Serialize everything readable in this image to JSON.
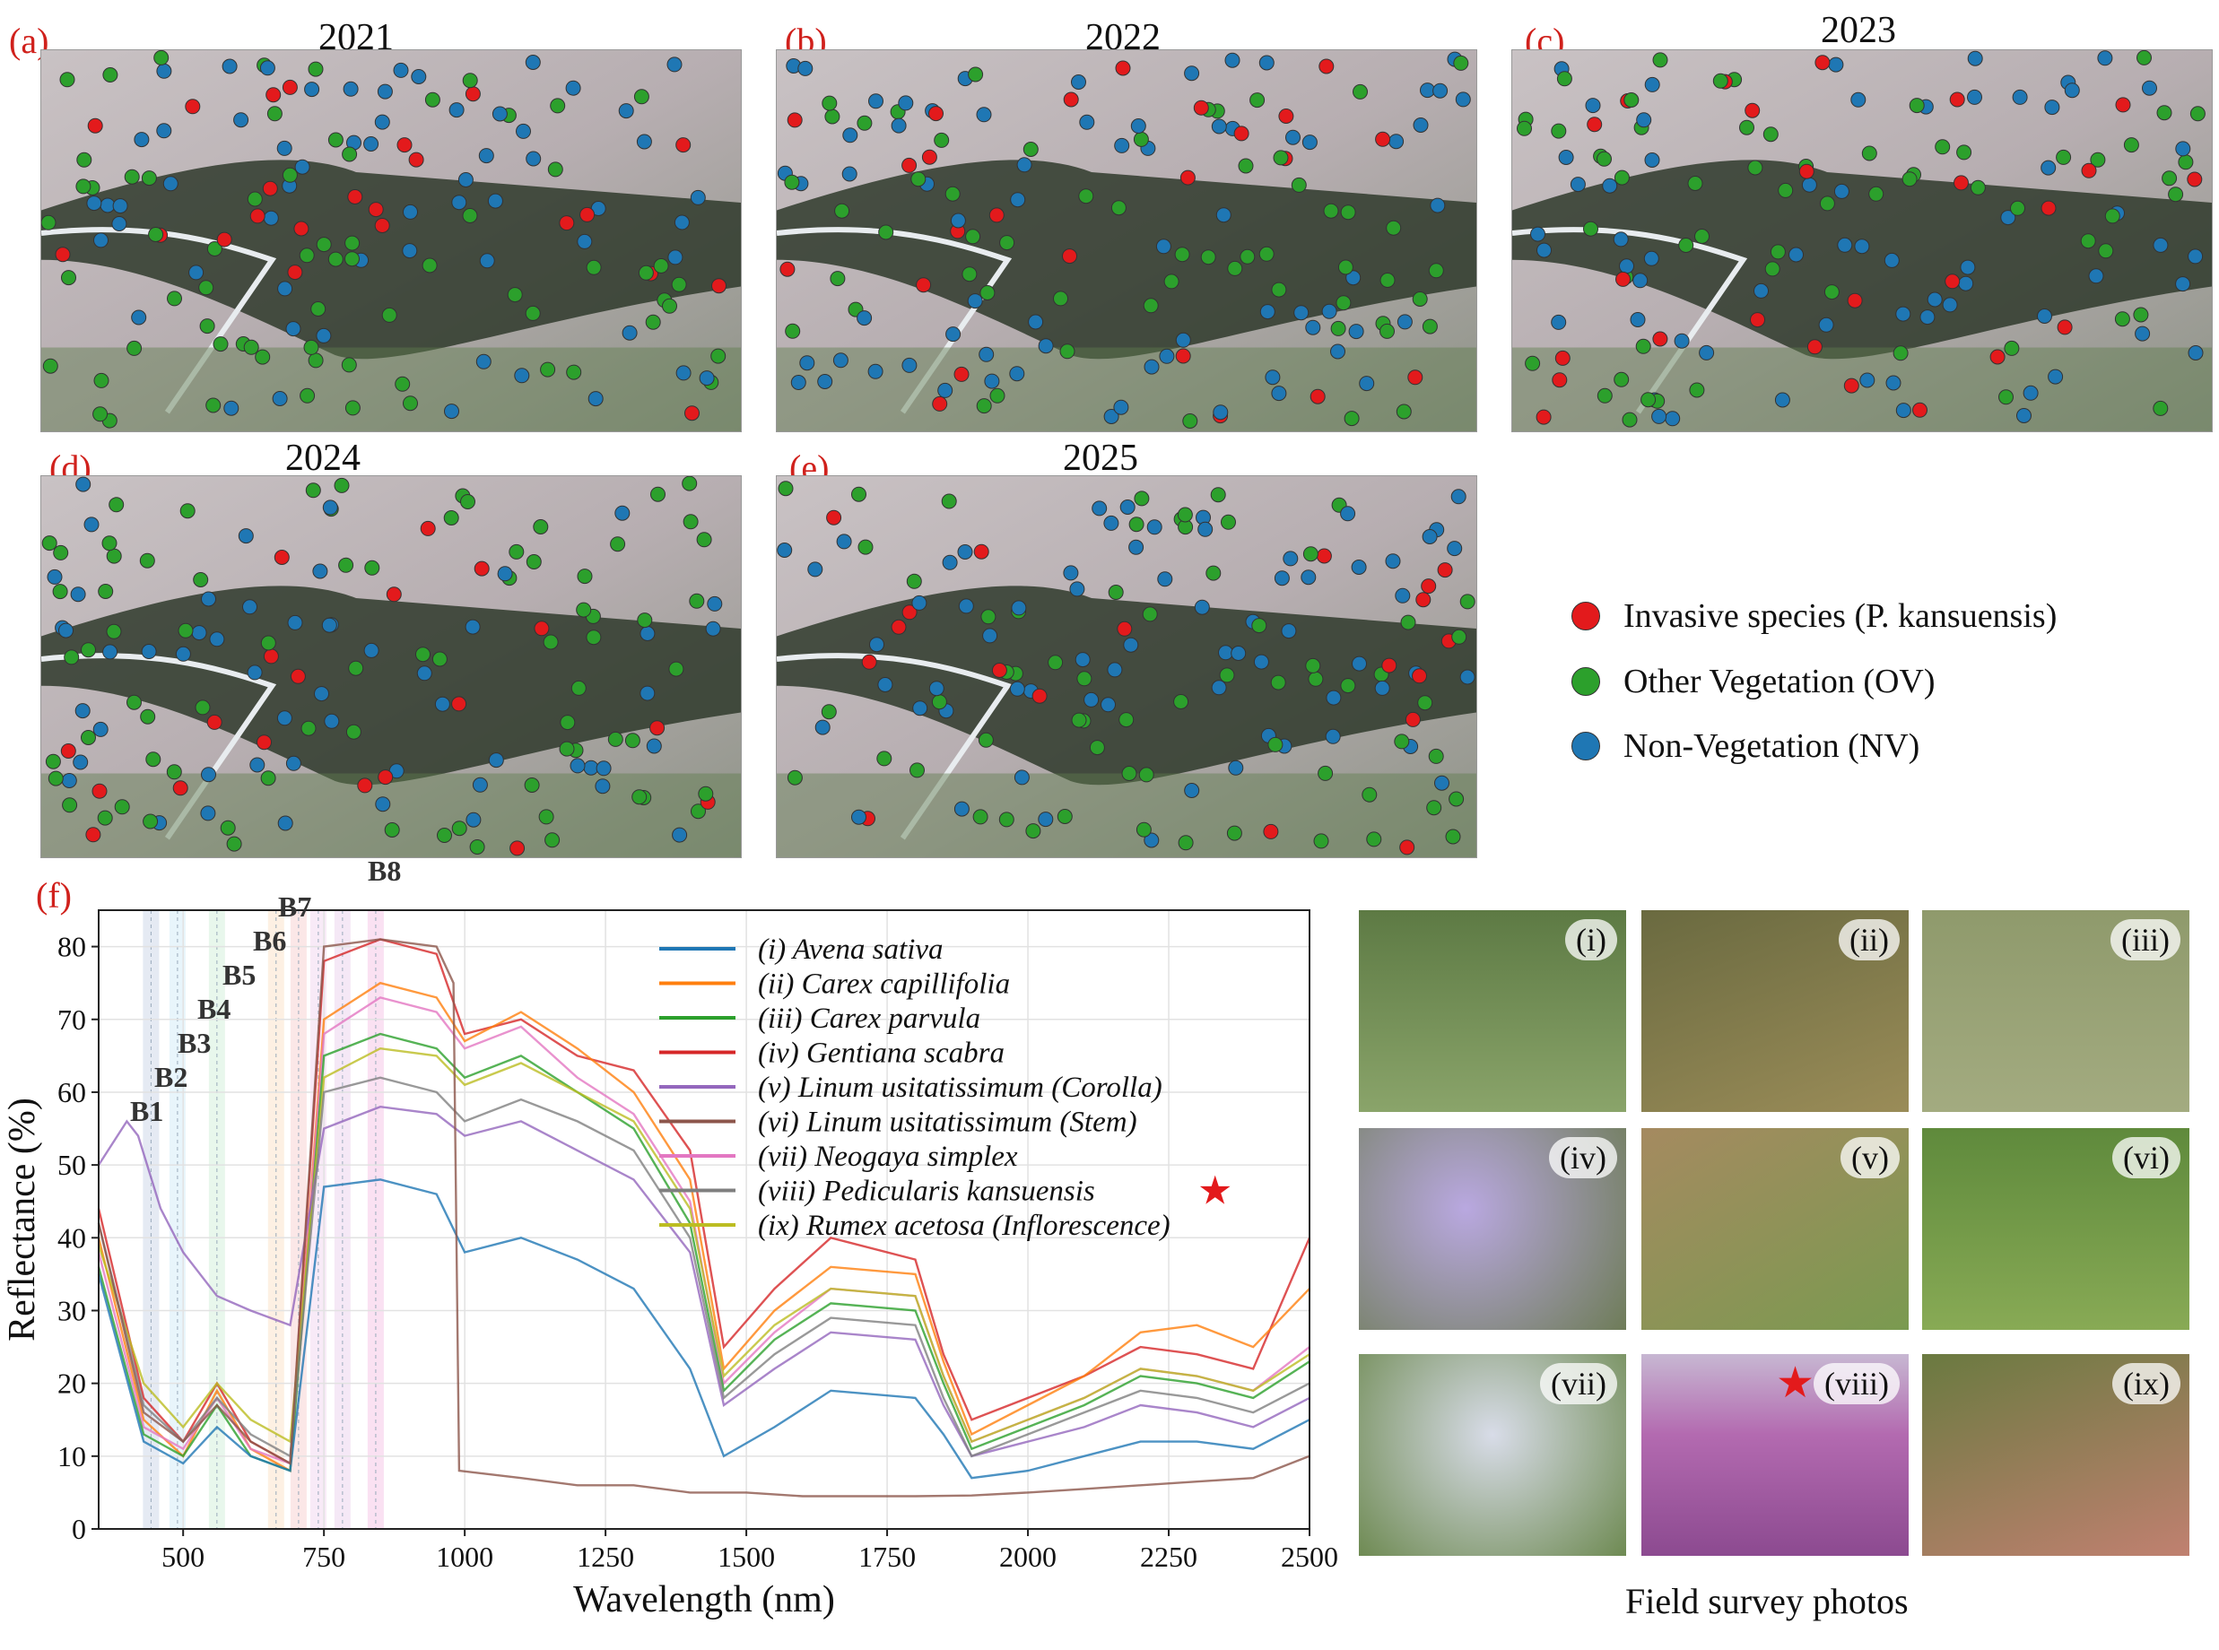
{
  "maps": [
    {
      "label": "(a)",
      "year": "2021"
    },
    {
      "label": "(b)",
      "year": "2022"
    },
    {
      "label": "(c)",
      "year": "2023"
    },
    {
      "label": "(d)",
      "year": "2024"
    },
    {
      "label": "(e)",
      "year": "2025"
    }
  ],
  "legend": [
    {
      "label": "Invasive species (P. kansuensis)",
      "color": "#e31a1c"
    },
    {
      "label": "Other Vegetation (OV)",
      "color": "#2ca02c"
    },
    {
      "label": "Non-Vegetation (NV)",
      "color": "#1f77b4"
    }
  ],
  "photos": {
    "caption": "Field survey photos",
    "items": [
      {
        "label": "(i)"
      },
      {
        "label": "(ii)"
      },
      {
        "label": "(iii)"
      },
      {
        "label": "(iv)"
      },
      {
        "label": "(v)"
      },
      {
        "label": "(vi)"
      },
      {
        "label": "(vii)"
      },
      {
        "label": "(viii)"
      },
      {
        "label": "(ix)"
      }
    ]
  },
  "chart_data": {
    "panel_label": "(f)",
    "type": "line",
    "xlabel": "Wavelength (nm)",
    "ylabel": "Reflectance (%)",
    "xlim": [
      350,
      2500
    ],
    "ylim": [
      0,
      85
    ],
    "xticks": [
      500,
      750,
      1000,
      1250,
      1500,
      1750,
      2000,
      2250,
      2500
    ],
    "yticks": [
      0,
      10,
      20,
      30,
      40,
      50,
      60,
      70,
      80
    ],
    "grid": true,
    "legend_placement": "top-right",
    "bands": [
      {
        "name": "B1",
        "center": 443
      },
      {
        "name": "B2",
        "center": 490
      },
      {
        "name": "B3",
        "center": 560
      },
      {
        "name": "B4",
        "center": 665
      },
      {
        "name": "B5",
        "center": 705
      },
      {
        "name": "B6",
        "center": 740
      },
      {
        "name": "B7",
        "center": 783
      },
      {
        "name": "B8",
        "center": 842
      }
    ],
    "series": [
      {
        "name": "(i) Avena sativa",
        "color": "#1f77b4"
      },
      {
        "name": "(ii) Carex capillifolia",
        "color": "#ff7f0e"
      },
      {
        "name": "(iii) Carex parvula",
        "color": "#2ca02c"
      },
      {
        "name": "(iv) Gentiana scabra",
        "color": "#d62728"
      },
      {
        "name": "(v) Linum usitatissimum (Corolla)",
        "color": "#9467bd"
      },
      {
        "name": "(vi) Linum usitatissimum (Stem)",
        "color": "#8c564b"
      },
      {
        "name": "(vii) Neogaya simplex",
        "color": "#e377c2"
      },
      {
        "name": "(viii) Pedicularis kansuensis",
        "color": "#7f7f7f"
      },
      {
        "name": "(ix) Rumex acetosa (Inflorescence)",
        "color": "#bcbd22"
      }
    ],
    "curves": [
      {
        "color": "#d62728",
        "x": [
          350,
          430,
          500,
          560,
          620,
          690,
          750,
          850,
          950,
          1000,
          1100,
          1200,
          1300,
          1400,
          1460,
          1550,
          1650,
          1800,
          1850,
          1900,
          2000,
          2100,
          2200,
          2300,
          2400,
          2500
        ],
        "y": [
          44,
          18,
          12,
          20,
          12,
          9,
          78,
          81,
          79,
          68,
          70,
          65,
          63,
          52,
          25,
          33,
          40,
          37,
          24,
          15,
          18,
          21,
          25,
          24,
          22,
          40
        ]
      },
      {
        "color": "#ff7f0e",
        "x": [
          350,
          430,
          500,
          560,
          620,
          690,
          750,
          850,
          950,
          1000,
          1100,
          1200,
          1300,
          1400,
          1460,
          1550,
          1650,
          1800,
          1850,
          1900,
          2000,
          2100,
          2200,
          2300,
          2400,
          2500
        ],
        "y": [
          40,
          15,
          10,
          19,
          11,
          8,
          70,
          75,
          73,
          67,
          71,
          66,
          60,
          48,
          22,
          30,
          36,
          35,
          23,
          13,
          17,
          21,
          27,
          28,
          25,
          33
        ]
      },
      {
        "color": "#e377c2",
        "x": [
          350,
          430,
          500,
          560,
          620,
          690,
          750,
          850,
          950,
          1000,
          1100,
          1200,
          1300,
          1400,
          1460,
          1550,
          1650,
          1800,
          1850,
          1900,
          2000,
          2100,
          2200,
          2300,
          2400,
          2500
        ],
        "y": [
          38,
          14,
          11,
          18,
          11,
          9,
          68,
          73,
          71,
          66,
          69,
          62,
          57,
          45,
          20,
          27,
          33,
          32,
          21,
          12,
          15,
          18,
          22,
          21,
          19,
          25
        ]
      },
      {
        "color": "#2ca02c",
        "x": [
          350,
          430,
          500,
          560,
          620,
          690,
          750,
          850,
          950,
          1000,
          1100,
          1200,
          1300,
          1400,
          1460,
          1550,
          1650,
          1800,
          1850,
          1900,
          2000,
          2100,
          2200,
          2300,
          2400,
          2500
        ],
        "y": [
          36,
          13,
          10,
          17,
          10,
          8,
          65,
          68,
          66,
          62,
          65,
          60,
          55,
          42,
          19,
          26,
          31,
          30,
          20,
          11,
          14,
          17,
          21,
          20,
          18,
          23
        ]
      },
      {
        "color": "#bcbd22",
        "x": [
          350,
          430,
          500,
          560,
          620,
          690,
          750,
          850,
          950,
          1000,
          1100,
          1200,
          1300,
          1400,
          1460,
          1550,
          1650,
          1800,
          1850,
          1900,
          2000,
          2100,
          2200,
          2300,
          2400,
          2500
        ],
        "y": [
          39,
          20,
          14,
          20,
          15,
          12,
          62,
          66,
          65,
          61,
          64,
          60,
          56,
          44,
          21,
          28,
          33,
          32,
          21,
          12,
          15,
          18,
          22,
          21,
          19,
          24
        ]
      },
      {
        "color": "#9467bd",
        "x": [
          350,
          400,
          420,
          460,
          500,
          560,
          620,
          690,
          750,
          850,
          950,
          1000,
          1100,
          1200,
          1300,
          1400,
          1460,
          1550,
          1650,
          1800,
          1850,
          1900,
          2000,
          2100,
          2200,
          2300,
          2400,
          2500
        ],
        "y": [
          50,
          56,
          54,
          44,
          38,
          32,
          30,
          28,
          55,
          58,
          57,
          54,
          56,
          52,
          48,
          38,
          17,
          22,
          27,
          26,
          17,
          10,
          12,
          14,
          17,
          16,
          14,
          18
        ]
      },
      {
        "color": "#7f7f7f",
        "x": [
          350,
          430,
          500,
          560,
          620,
          690,
          750,
          850,
          950,
          1000,
          1100,
          1200,
          1300,
          1400,
          1460,
          1550,
          1650,
          1800,
          1850,
          1900,
          2000,
          2100,
          2200,
          2300,
          2400,
          2500
        ],
        "y": [
          42,
          17,
          12,
          18,
          13,
          10,
          60,
          62,
          60,
          56,
          59,
          56,
          52,
          40,
          18,
          24,
          29,
          28,
          18,
          10,
          13,
          16,
          19,
          18,
          16,
          20
        ]
      },
      {
        "color": "#1f77b4",
        "x": [
          350,
          430,
          500,
          560,
          620,
          690,
          750,
          850,
          950,
          1000,
          1100,
          1200,
          1300,
          1400,
          1460,
          1550,
          1650,
          1800,
          1850,
          1900,
          2000,
          2100,
          2200,
          2300,
          2400,
          2500
        ],
        "y": [
          35,
          12,
          9,
          14,
          10,
          8,
          47,
          48,
          46,
          38,
          40,
          37,
          33,
          22,
          10,
          14,
          19,
          18,
          13,
          7,
          8,
          10,
          12,
          12,
          11,
          15
        ]
      },
      {
        "color": "#8c564b",
        "x": [
          350,
          430,
          500,
          560,
          620,
          690,
          750,
          850,
          950,
          980,
          990,
          1100,
          1200,
          1300,
          1400,
          1500,
          1600,
          1800,
          1900,
          2000,
          2100,
          2200,
          2300,
          2400,
          2500
        ],
        "y": [
          42,
          16,
          12,
          17,
          12,
          9,
          80,
          81,
          80,
          75,
          8,
          7,
          6,
          6,
          5,
          5,
          4.5,
          4.5,
          4.6,
          5,
          5.5,
          6,
          6.5,
          7,
          10
        ]
      }
    ]
  }
}
